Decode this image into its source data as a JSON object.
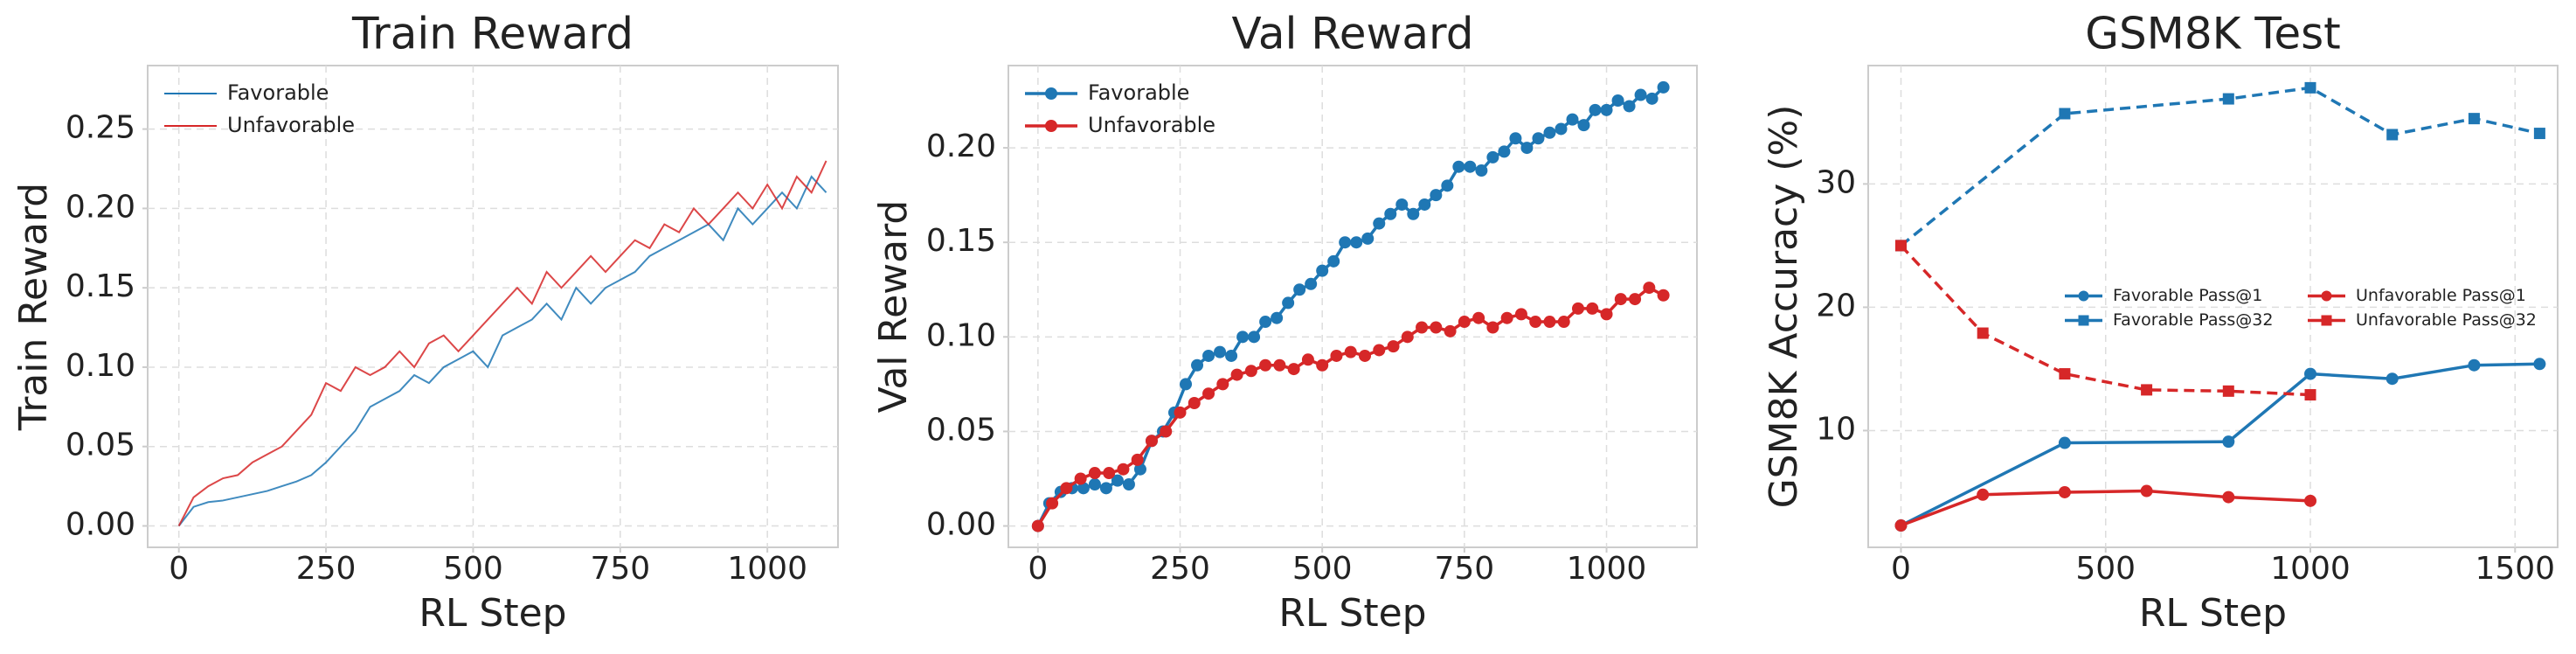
{
  "chart_data": [
    {
      "type": "line",
      "title": "Train Reward",
      "xlabel": "RL Step",
      "ylabel": "Train Reward",
      "xlim": [
        -53,
        1120
      ],
      "ylim": [
        -0.0135,
        0.29
      ],
      "xticks": [
        0,
        250,
        500,
        750,
        1000
      ],
      "yticks": [
        {
          "value": 0,
          "label": "0.00"
        },
        {
          "value": 0.05,
          "label": "0.05"
        },
        {
          "value": 0.1,
          "label": "0.10"
        },
        {
          "value": 0.15,
          "label": "0.15"
        },
        {
          "value": 0.2,
          "label": "0.20"
        },
        {
          "value": 0.25,
          "label": "0.25"
        }
      ],
      "grid": true,
      "legend": "upper left",
      "x": [
        0,
        25,
        50,
        75,
        100,
        125,
        150,
        175,
        200,
        225,
        250,
        275,
        300,
        325,
        350,
        375,
        400,
        425,
        450,
        475,
        500,
        525,
        550,
        575,
        600,
        625,
        650,
        675,
        700,
        725,
        750,
        775,
        800,
        825,
        850,
        875,
        900,
        925,
        950,
        975,
        1000,
        1025,
        1050,
        1075,
        1100
      ],
      "series": [
        {
          "name": "Favorable",
          "color": "#1f77b4",
          "linestyle": "solid",
          "marker": null,
          "values": [
            0,
            0.012,
            0.015,
            0.016,
            0.018,
            0.02,
            0.022,
            0.025,
            0.028,
            0.032,
            0.04,
            0.05,
            0.06,
            0.075,
            0.08,
            0.085,
            0.095,
            0.09,
            0.1,
            0.105,
            0.11,
            0.1,
            0.12,
            0.125,
            0.13,
            0.14,
            0.13,
            0.15,
            0.14,
            0.15,
            0.155,
            0.16,
            0.17,
            0.175,
            0.18,
            0.185,
            0.19,
            0.18,
            0.2,
            0.19,
            0.2,
            0.21,
            0.2,
            0.22,
            0.21
          ]
        },
        {
          "name": "Unfavorable",
          "color": "#d62728",
          "linestyle": "solid",
          "marker": null,
          "values": [
            0,
            0.018,
            0.025,
            0.03,
            0.032,
            0.04,
            0.045,
            0.05,
            0.06,
            0.07,
            0.09,
            0.085,
            0.1,
            0.095,
            0.1,
            0.11,
            0.1,
            0.115,
            0.12,
            0.11,
            0.12,
            0.13,
            0.14,
            0.15,
            0.14,
            0.16,
            0.15,
            0.16,
            0.17,
            0.16,
            0.17,
            0.18,
            0.175,
            0.19,
            0.185,
            0.2,
            0.19,
            0.2,
            0.21,
            0.2,
            0.215,
            0.2,
            0.22,
            0.21,
            0.23
          ]
        }
      ]
    },
    {
      "type": "line",
      "title": "Val Reward",
      "xlabel": "RL Step",
      "ylabel": "Val Reward",
      "xlim": [
        -52,
        1159
      ],
      "ylim": [
        -0.0113,
        0.2435
      ],
      "xticks": [
        0,
        250,
        500,
        750,
        1000
      ],
      "yticks": [
        {
          "value": 0,
          "label": "0.00"
        },
        {
          "value": 0.05,
          "label": "0.05"
        },
        {
          "value": 0.1,
          "label": "0.10"
        },
        {
          "value": 0.15,
          "label": "0.15"
        },
        {
          "value": 0.2,
          "label": "0.20"
        }
      ],
      "grid": true,
      "legend": "upper left",
      "series": [
        {
          "name": "Favorable",
          "color": "#1f77b4",
          "linestyle": "solid",
          "marker": "o",
          "x": [
            0,
            20,
            40,
            60,
            80,
            100,
            120,
            140,
            160,
            180,
            200,
            220,
            240,
            260,
            280,
            300,
            320,
            340,
            360,
            380,
            400,
            420,
            440,
            460,
            480,
            500,
            520,
            540,
            560,
            580,
            600,
            620,
            640,
            660,
            680,
            700,
            720,
            740,
            760,
            780,
            800,
            820,
            840,
            860,
            880,
            900,
            920,
            940,
            960,
            980,
            1000,
            1020,
            1040,
            1060,
            1080,
            1100
          ],
          "values": [
            0,
            0.012,
            0.018,
            0.02,
            0.02,
            0.022,
            0.02,
            0.024,
            0.022,
            0.03,
            0.045,
            0.05,
            0.06,
            0.075,
            0.085,
            0.09,
            0.092,
            0.09,
            0.1,
            0.1,
            0.108,
            0.11,
            0.118,
            0.125,
            0.128,
            0.135,
            0.14,
            0.15,
            0.15,
            0.152,
            0.16,
            0.165,
            0.17,
            0.165,
            0.17,
            0.175,
            0.18,
            0.19,
            0.19,
            0.188,
            0.195,
            0.198,
            0.205,
            0.2,
            0.205,
            0.208,
            0.21,
            0.215,
            0.212,
            0.22,
            0.22,
            0.225,
            0.222,
            0.228,
            0.226,
            0.232
          ]
        },
        {
          "name": "Unfavorable",
          "color": "#d62728",
          "linestyle": "solid",
          "marker": "o",
          "x": [
            0,
            25,
            50,
            75,
            100,
            125,
            150,
            175,
            200,
            225,
            250,
            275,
            300,
            325,
            350,
            375,
            400,
            425,
            450,
            475,
            500,
            525,
            550,
            575,
            600,
            625,
            650,
            675,
            700,
            725,
            750,
            775,
            800,
            825,
            850,
            875,
            900,
            925,
            950,
            975,
            1000,
            1025,
            1050,
            1075,
            1100
          ],
          "values": [
            0,
            0.012,
            0.02,
            0.025,
            0.028,
            0.028,
            0.03,
            0.035,
            0.045,
            0.05,
            0.06,
            0.065,
            0.07,
            0.075,
            0.08,
            0.082,
            0.085,
            0.085,
            0.083,
            0.088,
            0.085,
            0.09,
            0.092,
            0.09,
            0.093,
            0.095,
            0.1,
            0.105,
            0.105,
            0.103,
            0.108,
            0.11,
            0.105,
            0.11,
            0.112,
            0.108,
            0.108,
            0.108,
            0.115,
            0.115,
            0.112,
            0.12,
            0.12,
            0.126,
            0.122
          ]
        }
      ]
    },
    {
      "type": "line",
      "title": "GSM8K Test",
      "xlabel": "RL Step",
      "ylabel": "GSM8K Accuracy (%)",
      "xlim": [
        -80,
        1604
      ],
      "ylim": [
        0.53,
        39.6
      ],
      "xticks": [
        0,
        500,
        1000,
        1500
      ],
      "yticks": [
        10,
        20,
        30
      ],
      "grid": true,
      "legend": "center right",
      "legend_columns": 2,
      "series": [
        {
          "name": "Favorable Pass@1",
          "color": "#1f77b4",
          "linestyle": "solid",
          "marker": "o",
          "x": [
            0,
            400,
            800,
            1000,
            1200,
            1400,
            1560
          ],
          "values": [
            2.3,
            9.0,
            9.1,
            14.6,
            14.2,
            15.3,
            15.4
          ]
        },
        {
          "name": "Favorable Pass@32",
          "color": "#1f77b4",
          "linestyle": "dashed",
          "marker": "s",
          "x": [
            0,
            400,
            800,
            1000,
            1200,
            1400,
            1560
          ],
          "values": [
            25.0,
            35.7,
            36.9,
            37.8,
            34.0,
            35.3,
            34.1
          ]
        },
        {
          "name": "Unfavorable Pass@1",
          "color": "#d62728",
          "linestyle": "solid",
          "marker": "o",
          "x": [
            0,
            200,
            400,
            600,
            800,
            1000
          ],
          "values": [
            2.3,
            4.8,
            5.0,
            5.1,
            4.6,
            4.3
          ]
        },
        {
          "name": "Unfavorable Pass@32",
          "color": "#d62728",
          "linestyle": "dashed",
          "marker": "s",
          "x": [
            0,
            200,
            400,
            600,
            800,
            1000
          ],
          "values": [
            25.0,
            17.9,
            14.6,
            13.3,
            13.2,
            12.9
          ]
        }
      ]
    }
  ]
}
